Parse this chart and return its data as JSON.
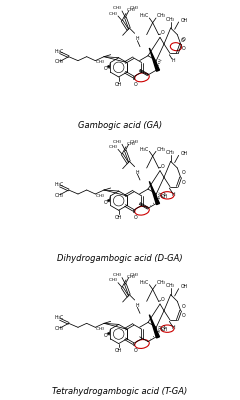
{
  "labels": [
    "Gambogic acid (GA)",
    "Dihydrogambogic acid (D-GA)",
    "Tetrahydrogambogic acid (T-GA)"
  ],
  "label_fontsize": 6.0,
  "bg_color": "#ffffff",
  "figsize": [
    2.4,
    4.0
  ],
  "dpi": 100,
  "red_color": "#cc0000",
  "black_color": "#000000"
}
